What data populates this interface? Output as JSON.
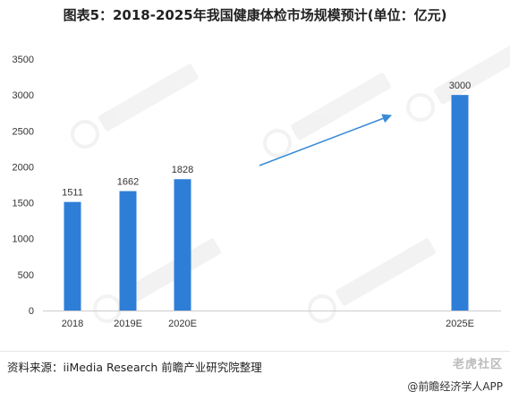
{
  "title": "图表5：2018-2025年我国健康体检市场规模预计(单位：亿元)",
  "source": "资料来源：iiMedia Research 前瞻产业研究院整理",
  "watermark_bottom": "老虎社区",
  "watermark_app": "@前瞻经济学人APP",
  "colors": {
    "bar": "#2e7ed8",
    "arrow": "#3a8ad6",
    "axis": "#cccccc",
    "text": "#333333"
  },
  "chart_data": {
    "type": "bar",
    "categories": [
      "2018",
      "2019E",
      "2020E",
      "2025E"
    ],
    "values": [
      1511,
      1662,
      1828,
      3000
    ],
    "ylim": [
      0,
      3500
    ],
    "yticks": [
      0,
      500,
      1000,
      1500,
      2000,
      2500,
      3000,
      3500
    ],
    "xlabel": "",
    "ylabel": "",
    "grid": false,
    "legend": "none",
    "annotation": "upward trend arrow"
  }
}
